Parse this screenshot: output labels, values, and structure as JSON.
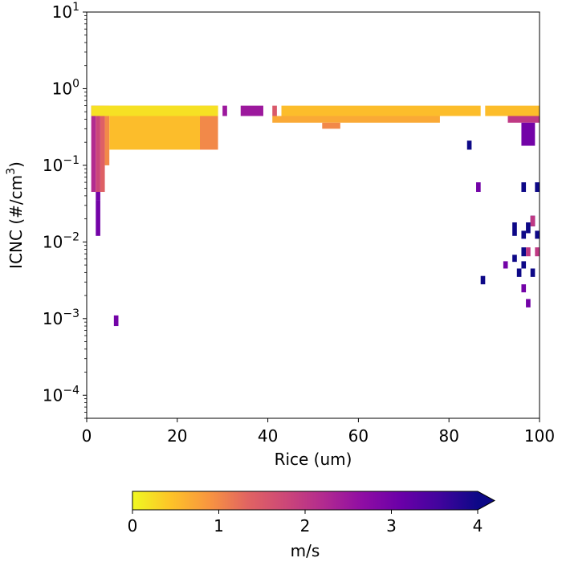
{
  "chart_data": {
    "type": "heatmap",
    "title": "",
    "xlabel": "Rice (um)",
    "ylabel_main": "ICNC (#/cm",
    "ylabel_sup": "3",
    "ylabel_end": ")",
    "ylabel": "ICNC (#/cm3)",
    "xlim": [
      0,
      100
    ],
    "ylim": [
      5e-05,
      10
    ],
    "yscale": "log",
    "x_ticks": [
      {
        "value": 0,
        "label": "0"
      },
      {
        "value": 20,
        "label": "20"
      },
      {
        "value": 40,
        "label": "40"
      },
      {
        "value": 60,
        "label": "60"
      },
      {
        "value": 80,
        "label": "80"
      },
      {
        "value": 100,
        "label": "100"
      }
    ],
    "y_ticks": [
      {
        "value": 10,
        "base": "10",
        "exp": "1"
      },
      {
        "value": 1,
        "base": "10",
        "exp": "0"
      },
      {
        "value": 0.1,
        "base": "10",
        "exp": "−1"
      },
      {
        "value": 0.01,
        "base": "10",
        "exp": "−2"
      },
      {
        "value": 0.001,
        "base": "10",
        "exp": "−3"
      },
      {
        "value": 0.0001,
        "base": "10",
        "exp": "−4"
      }
    ],
    "grid": false,
    "colorbar": {
      "label": "m/s",
      "min": 0,
      "max": 4,
      "extend": "max",
      "colormap": "plasma_r",
      "ticks": [
        {
          "value": 0,
          "label": "0"
        },
        {
          "value": 1,
          "label": "1"
        },
        {
          "value": 2,
          "label": "2"
        },
        {
          "value": 3,
          "label": "3"
        },
        {
          "value": 4,
          "label": "4"
        }
      ],
      "colors": [
        "#f0f921",
        "#fdc328",
        "#f89540",
        "#e16462",
        "#cc4778",
        "#b12a90",
        "#8f0da4",
        "#6a00a8",
        "#41049d",
        "#0d0887"
      ]
    },
    "cells": [
      {
        "x0": 1,
        "x1": 2,
        "y0": 0.045,
        "y1": 0.6,
        "v": 2.2
      },
      {
        "x0": 2,
        "x1": 3,
        "y0": 0.045,
        "y1": 0.6,
        "v": 1.8
      },
      {
        "x0": 3,
        "x1": 4,
        "y0": 0.045,
        "y1": 0.6,
        "v": 1.4
      },
      {
        "x0": 4,
        "x1": 5,
        "y0": 0.1,
        "y1": 0.6,
        "v": 1.0
      },
      {
        "x0": 5,
        "x1": 25,
        "y0": 0.16,
        "y1": 0.6,
        "v": 0.5
      },
      {
        "x0": 25,
        "x1": 29,
        "y0": 0.16,
        "y1": 0.6,
        "v": 1.0
      },
      {
        "x0": 1,
        "x1": 29,
        "y0": 0.44,
        "y1": 0.6,
        "v": 0.2
      },
      {
        "x0": 2,
        "x1": 3,
        "y0": 0.035,
        "y1": 0.045,
        "v": 3.0
      },
      {
        "x0": 2,
        "x1": 3,
        "y0": 0.012,
        "y1": 0.035,
        "v": 3.0
      },
      {
        "x0": 6,
        "x1": 7,
        "y0": 0.0008,
        "y1": 0.0011,
        "v": 3.0
      },
      {
        "x0": 30,
        "x1": 31,
        "y0": 0.44,
        "y1": 0.6,
        "v": 2.5
      },
      {
        "x0": 34,
        "x1": 39,
        "y0": 0.44,
        "y1": 0.6,
        "v": 2.5
      },
      {
        "x0": 41,
        "x1": 42,
        "y0": 0.44,
        "y1": 0.6,
        "v": 1.5
      },
      {
        "x0": 43,
        "x1": 87,
        "y0": 0.44,
        "y1": 0.6,
        "v": 0.5
      },
      {
        "x0": 88,
        "x1": 100,
        "y0": 0.44,
        "y1": 0.6,
        "v": 0.5
      },
      {
        "x0": 41,
        "x1": 78,
        "y0": 0.36,
        "y1": 0.44,
        "v": 0.7
      },
      {
        "x0": 52,
        "x1": 56,
        "y0": 0.3,
        "y1": 0.36,
        "v": 1.0
      },
      {
        "x0": 84,
        "x1": 85,
        "y0": 0.16,
        "y1": 0.21,
        "v": 4.0
      },
      {
        "x0": 86,
        "x1": 87,
        "y0": 0.045,
        "y1": 0.06,
        "v": 3.0
      },
      {
        "x0": 87,
        "x1": 88,
        "y0": 0.0028,
        "y1": 0.0036,
        "v": 4.0
      },
      {
        "x0": 93,
        "x1": 100,
        "y0": 0.36,
        "y1": 0.44,
        "v": 2.0
      },
      {
        "x0": 96,
        "x1": 99,
        "y0": 0.18,
        "y1": 0.36,
        "v": 3.0
      },
      {
        "x0": 99,
        "x1": 100,
        "y0": 0.045,
        "y1": 0.06,
        "v": 4.0
      },
      {
        "x0": 96,
        "x1": 97,
        "y0": 0.045,
        "y1": 0.06,
        "v": 4.0
      },
      {
        "x0": 94,
        "x1": 95,
        "y0": 0.012,
        "y1": 0.018,
        "v": 4.0
      },
      {
        "x0": 96,
        "x1": 97,
        "y0": 0.011,
        "y1": 0.014,
        "v": 4.0
      },
      {
        "x0": 97,
        "x1": 98,
        "y0": 0.013,
        "y1": 0.018,
        "v": 4.0
      },
      {
        "x0": 98,
        "x1": 99,
        "y0": 0.016,
        "y1": 0.022,
        "v": 4.0
      },
      {
        "x0": 99,
        "x1": 100,
        "y0": 0.011,
        "y1": 0.014,
        "v": 4.0
      },
      {
        "x0": 96,
        "x1": 97,
        "y0": 0.0065,
        "y1": 0.0085,
        "v": 4.0
      },
      {
        "x0": 97,
        "x1": 98,
        "y0": 0.0065,
        "y1": 0.0085,
        "v": 2.0
      },
      {
        "x0": 99,
        "x1": 100,
        "y0": 0.0065,
        "y1": 0.0085,
        "v": 2.0
      },
      {
        "x0": 94,
        "x1": 95,
        "y0": 0.0055,
        "y1": 0.0068,
        "v": 4.0
      },
      {
        "x0": 92,
        "x1": 93,
        "y0": 0.0045,
        "y1": 0.0056,
        "v": 3.0
      },
      {
        "x0": 96,
        "x1": 97,
        "y0": 0.0045,
        "y1": 0.0056,
        "v": 4.0
      },
      {
        "x0": 95,
        "x1": 96,
        "y0": 0.0035,
        "y1": 0.0045,
        "v": 4.0
      },
      {
        "x0": 98,
        "x1": 99,
        "y0": 0.0035,
        "y1": 0.0045,
        "v": 4.0
      },
      {
        "x0": 96,
        "x1": 97,
        "y0": 0.0022,
        "y1": 0.0028,
        "v": 3.0
      },
      {
        "x0": 97,
        "x1": 98,
        "y0": 0.0014,
        "y1": 0.0018,
        "v": 3.0
      },
      {
        "x0": 98,
        "x1": 99,
        "y0": 0.016,
        "y1": 0.022,
        "v": 2.0
      }
    ]
  }
}
